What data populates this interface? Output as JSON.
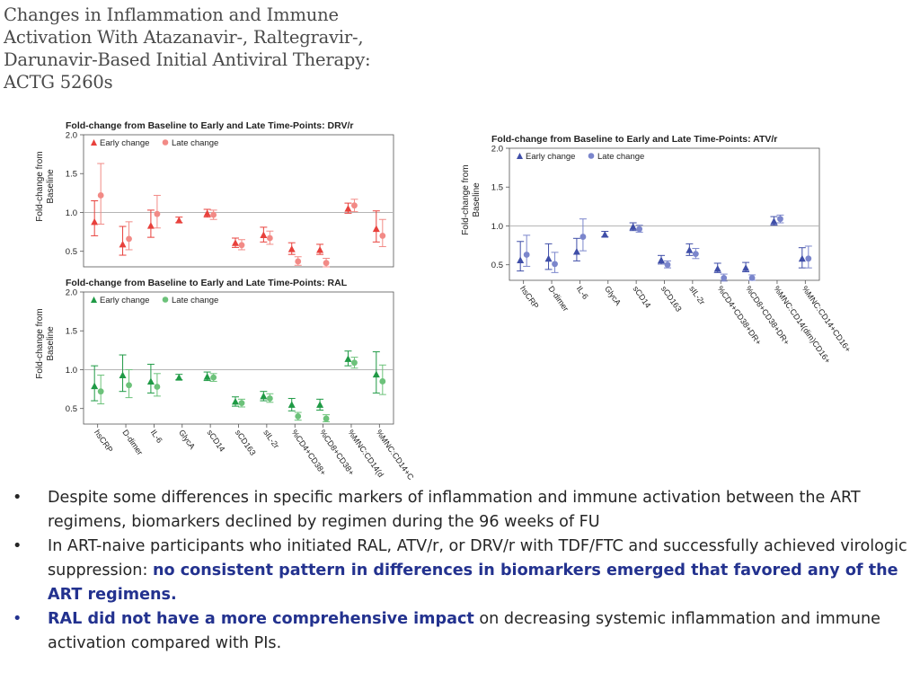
{
  "slide": {
    "title": "Changes in Inflammation and Immune Activation With Atazanavir-, Raltegravir-, Darunavir-Based Initial Antiviral Therapy: ACTG 5260s"
  },
  "colors": {
    "drv": "#e8413c",
    "drv_late": "#f28a86",
    "ral": "#1f9a45",
    "ral_late": "#6cc27a",
    "atv": "#3f4ea8",
    "atv_late": "#7b86cc",
    "baseline_line": "#b5b5b5",
    "highlight": "#23328f"
  },
  "chart_data": [
    {
      "id": "drv",
      "type": "scatter",
      "title": "Fold-change from Baseline to Early and Late Time-Points: DRV/r",
      "ylabel": "Fold-change from Baseline",
      "ylim": [
        0.3,
        2.0
      ],
      "yticks": [
        0.5,
        1.0,
        1.5,
        2.0
      ],
      "ytick_labels": [
        "0.5",
        "1.0",
        "1.5",
        "2.0"
      ],
      "reference_line": 1.0,
      "show_xticks": false,
      "legend": [
        "Early change",
        "Late change"
      ],
      "categories": [
        "hsCRP",
        "D-dimer",
        "IL-6",
        "GlycA",
        "sCD14",
        "sCD163",
        "sIL-2r",
        "%CD4+CD38+DR+",
        "%CD8+CD38+DR+",
        "%MNC:CD14(dim)CD16+",
        "%MNC:CD14+CD16+"
      ],
      "series": [
        {
          "name": "Early change",
          "values": [
            0.88,
            0.59,
            0.83,
            0.9,
            0.99,
            0.61,
            0.71,
            0.53,
            0.52,
            1.05,
            0.79
          ],
          "low": [
            0.7,
            0.45,
            0.68,
            0.87,
            0.94,
            0.55,
            0.62,
            0.46,
            0.46,
            0.99,
            0.62
          ],
          "high": [
            1.15,
            0.82,
            1.03,
            0.94,
            1.04,
            0.67,
            0.81,
            0.61,
            0.59,
            1.12,
            1.02
          ]
        },
        {
          "name": "Late change",
          "values": [
            1.22,
            0.66,
            0.98,
            null,
            0.97,
            0.58,
            0.67,
            0.37,
            0.35,
            1.09,
            0.7
          ],
          "low": [
            0.85,
            0.52,
            0.8,
            null,
            0.91,
            0.52,
            0.59,
            0.32,
            0.3,
            1.01,
            0.56
          ],
          "high": [
            1.63,
            0.88,
            1.22,
            null,
            1.03,
            0.65,
            0.76,
            0.43,
            0.41,
            1.17,
            0.91
          ]
        }
      ]
    },
    {
      "id": "ral",
      "type": "scatter",
      "title": "Fold-change from Baseline to Early and Late Time-Points: RAL",
      "ylabel": "Fold-change from Baseline",
      "ylim": [
        0.3,
        2.0
      ],
      "yticks": [
        0.5,
        1.0,
        1.5,
        2.0
      ],
      "ytick_labels": [
        "0.5",
        "1.0",
        "1.5",
        "2.0"
      ],
      "reference_line": 1.0,
      "show_xticks": true,
      "legend": [
        "Early change",
        "Late change"
      ],
      "categories": [
        "hsCRP",
        "D-dimer",
        "IL-6",
        "GlycA",
        "sCD14",
        "sCD163",
        "sIL-2r",
        "%CD4+CD38+DR+",
        "%CD8+CD38+DR+",
        "%MNC:CD14(dim)CD16+",
        "%MNC:CD14+CD16+"
      ],
      "xtick_labels": [
        "hsCRP",
        "D-dimer",
        "IL-6",
        "GlycA",
        "sCD14",
        "sCD163",
        "sIL-2r",
        "%CD4+CD38+",
        "%CD8+CD38+",
        "%MNC:CD14(d",
        "%MNC:CD14+C"
      ],
      "series": [
        {
          "name": "Early change",
          "values": [
            0.79,
            0.93,
            0.85,
            0.9,
            0.91,
            0.59,
            0.66,
            0.55,
            0.55,
            1.14,
            0.94
          ],
          "low": [
            0.6,
            0.72,
            0.7,
            0.87,
            0.86,
            0.53,
            0.6,
            0.47,
            0.48,
            1.05,
            0.7
          ],
          "high": [
            1.05,
            1.19,
            1.07,
            0.94,
            0.97,
            0.65,
            0.72,
            0.63,
            0.62,
            1.24,
            1.23
          ]
        },
        {
          "name": "Late change",
          "values": [
            0.72,
            0.8,
            0.78,
            null,
            0.9,
            0.57,
            0.63,
            0.4,
            0.37,
            1.09,
            0.85
          ],
          "low": [
            0.56,
            0.64,
            0.66,
            null,
            0.85,
            0.52,
            0.58,
            0.35,
            0.33,
            1.02,
            0.68
          ],
          "high": [
            0.93,
            1.0,
            0.95,
            null,
            0.95,
            0.62,
            0.69,
            0.45,
            0.42,
            1.16,
            1.06
          ]
        }
      ]
    },
    {
      "id": "atv",
      "type": "scatter",
      "title": "Fold-change from Baseline to Early and Late Time-Points: ATV/r",
      "ylabel": "Fold-change from Baseline",
      "ylim": [
        0.3,
        2.0
      ],
      "yticks": [
        0.5,
        1.0,
        1.5,
        2.0
      ],
      "ytick_labels": [
        "0.5",
        "1.0",
        "1.5",
        "2.0"
      ],
      "reference_line": 1.0,
      "show_xticks": true,
      "legend": [
        "Early change",
        "Late change"
      ],
      "categories": [
        "hsCRP",
        "D-dimer",
        "IL-6",
        "GlycA",
        "sCD14",
        "sCD163",
        "sIL-2r",
        "%CD4+CD38+DR+",
        "%CD8+CD38+DR+",
        "%MNC:CD14(dim)CD16+",
        "%MNC:CD14+CD16+"
      ],
      "xtick_labels": [
        "hsCRP",
        "D-dimer",
        "IL-6",
        "GlycA",
        "sCD14",
        "sCD163",
        "sIL-2r",
        "%CD4+CD38+DR+",
        "%CD8+CD38+DR+",
        "%MNC:CD14(dim)CD16+",
        "%MNC:CD14+CD16+"
      ],
      "series": [
        {
          "name": "Early change",
          "values": [
            0.56,
            0.58,
            0.67,
            0.89,
            0.99,
            0.56,
            0.69,
            0.45,
            0.46,
            1.06,
            0.58
          ],
          "low": [
            0.42,
            0.44,
            0.55,
            0.86,
            0.94,
            0.51,
            0.62,
            0.4,
            0.41,
            1.01,
            0.46
          ],
          "high": [
            0.8,
            0.77,
            0.84,
            0.93,
            1.04,
            0.62,
            0.77,
            0.52,
            0.53,
            1.12,
            0.72
          ]
        },
        {
          "name": "Late change",
          "values": [
            0.63,
            0.51,
            0.86,
            null,
            0.96,
            0.5,
            0.64,
            0.33,
            0.33,
            1.09,
            0.58
          ],
          "low": [
            0.48,
            0.4,
            0.68,
            null,
            0.92,
            0.46,
            0.58,
            0.29,
            0.3,
            1.04,
            0.46
          ],
          "high": [
            0.88,
            0.66,
            1.09,
            null,
            1.01,
            0.55,
            0.71,
            0.38,
            0.37,
            1.14,
            0.74
          ]
        }
      ]
    }
  ],
  "bullets": [
    {
      "marker": "•",
      "parts": [
        {
          "text": "Despite some differences in specific markers of inflammation and immune activation between the ART regimens, biomarkers declined by regimen during the 96 weeks of FU",
          "style": "normal"
        }
      ]
    },
    {
      "marker": "•",
      "parts": [
        {
          "text": "In ART-naive participants who initiated RAL, ATV/r, or DRV/r with TDF/FTC and successfully achieved virologic suppression: ",
          "style": "normal"
        },
        {
          "text": "no consistent pattern in differences in biomarkers emerged that favored any of the ART regimens.",
          "style": "highlight"
        }
      ]
    },
    {
      "marker": "•",
      "parts": [
        {
          "text": "RAL did not have a more comprehensive impact",
          "style": "highlight"
        },
        {
          "text": " on decreasing systemic inflammation and immune activation compared with PIs.",
          "style": "normal"
        }
      ]
    }
  ]
}
